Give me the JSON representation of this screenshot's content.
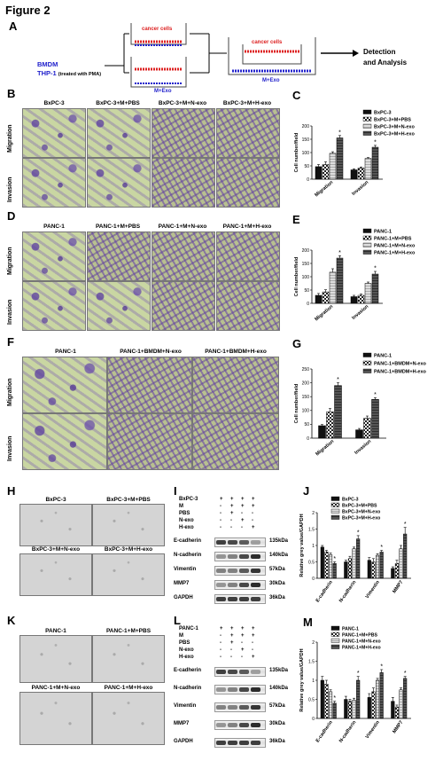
{
  "figure_title": "Figure 2",
  "panelA": {
    "letter": "A",
    "bmdm": "BMDM",
    "thp1": "THP-1",
    "thp1_note": "(treated with PMA)",
    "cancer1": "cancer cells",
    "cancer2": "cancer cells",
    "mexo1": "M+Exo",
    "mexo2": "M+Exo",
    "detection": "Detection",
    "analysis": "and Analysis"
  },
  "panelB": {
    "letter": "B",
    "cols": [
      "BxPC-3",
      "BxPC-3+M+PBS",
      "BxPC-3+M+N-exo",
      "BxPC-3+M+H-exo"
    ],
    "rows": [
      "Migration",
      "Invasion"
    ]
  },
  "panelD": {
    "letter": "D",
    "cols": [
      "PANC-1",
      "PANC-1+M+PBS",
      "PANC-1+M+N-exo",
      "PANC-1+M+H-exo"
    ],
    "rows": [
      "Migration",
      "Invasion"
    ]
  },
  "panelF": {
    "letter": "F",
    "cols": [
      "PANC-1",
      "PANC-1+BMDM+N-exo",
      "PANC-1+BMDM+H-exo"
    ],
    "rows": [
      "Migration",
      "Invasion"
    ]
  },
  "panelH": {
    "letter": "H",
    "caps": [
      "BxPC-3",
      "BxPC-3+M+PBS",
      "BxPC-3+M+N-exo",
      "BxPC-3+M+H-exo"
    ]
  },
  "panelK": {
    "letter": "K",
    "caps": [
      "PANC-1",
      "PANC-1+M+PBS",
      "PANC-1+M+N-exo",
      "PANC-1+M+H-exo"
    ]
  },
  "panelI": {
    "letter": "I",
    "rowlabels": [
      "BxPC-3",
      "M",
      "PBS",
      "N-exo",
      "H-exo"
    ],
    "signs": [
      [
        "+",
        "+",
        "+",
        "+"
      ],
      [
        "-",
        "+",
        "+",
        "+"
      ],
      [
        "-",
        "+",
        "-",
        "-"
      ],
      [
        "-",
        "-",
        "+",
        "-"
      ],
      [
        "-",
        "-",
        "-",
        "+"
      ]
    ],
    "proteins": [
      "E-cadherin",
      "N-cadherin",
      "Vimentin",
      "MMP7",
      "GAPDH"
    ],
    "kda": [
      "135kDa",
      "140kDa",
      "57kDa",
      "30kDa",
      "36kDa"
    ]
  },
  "panelL": {
    "letter": "L",
    "rowlabels": [
      "PANC-1",
      "M",
      "PBS",
      "N-exo",
      "H-exo"
    ],
    "signs": [
      [
        "+",
        "+",
        "+",
        "+"
      ],
      [
        "-",
        "+",
        "+",
        "+"
      ],
      [
        "-",
        "+",
        "-",
        "-"
      ],
      [
        "-",
        "-",
        "+",
        "-"
      ],
      [
        "-",
        "-",
        "-",
        "+"
      ]
    ],
    "proteins": [
      "E-cadherin",
      "N-cadherin",
      "Vimentin",
      "MMP7",
      "GAPDH"
    ],
    "kda": [
      "135kDa",
      "140kDa",
      "57kDa",
      "30kDa",
      "36kDa"
    ]
  },
  "chart_data": [
    {
      "panel": "C",
      "type": "bar",
      "ylabel": "Cell number/field",
      "ylim": [
        0,
        200
      ],
      "yticks": [
        0,
        50,
        100,
        150,
        200
      ],
      "categories": [
        "Migration",
        "Invasion"
      ],
      "series": [
        {
          "name": "BxPC-3",
          "values": [
            47,
            35
          ],
          "errors": [
            8,
            4
          ]
        },
        {
          "name": "BxPC-3+M+PBS",
          "values": [
            55,
            42
          ],
          "errors": [
            10,
            4
          ]
        },
        {
          "name": "BxPC-3+M+N-exo",
          "values": [
            97,
            78
          ],
          "errors": [
            6,
            3
          ]
        },
        {
          "name": "BxPC-3+M+H-exo",
          "values": [
            155,
            120
          ],
          "errors": [
            9,
            7
          ]
        }
      ],
      "significant": [
        false,
        false,
        false,
        true
      ]
    },
    {
      "panel": "E",
      "type": "bar",
      "ylabel": "Cell number/field",
      "ylim": [
        0,
        200
      ],
      "yticks": [
        0,
        50,
        100,
        150,
        200
      ],
      "categories": [
        "Migration",
        "Invasion"
      ],
      "series": [
        {
          "name": "PANC-1",
          "values": [
            30,
            25
          ],
          "errors": [
            7,
            5
          ]
        },
        {
          "name": "PANC-1+M+PBS",
          "values": [
            43,
            30
          ],
          "errors": [
            8,
            5
          ]
        },
        {
          "name": "PANC-1+M+N-exo",
          "values": [
            117,
            75
          ],
          "errors": [
            13,
            5
          ]
        },
        {
          "name": "PANC-1+M+H-exo",
          "values": [
            170,
            110
          ],
          "errors": [
            9,
            10
          ]
        }
      ],
      "significant": [
        false,
        false,
        false,
        true
      ]
    },
    {
      "panel": "G",
      "type": "bar",
      "ylabel": "Cell number/field",
      "ylim": [
        0,
        250
      ],
      "yticks": [
        0,
        50,
        100,
        150,
        200,
        250
      ],
      "categories": [
        "Migration",
        "Invasion"
      ],
      "series": [
        {
          "name": "PANC-1",
          "values": [
            45,
            30
          ],
          "errors": [
            4,
            5
          ]
        },
        {
          "name": "PANC-1+BMDM+N-exo",
          "values": [
            95,
            72
          ],
          "errors": [
            12,
            8
          ]
        },
        {
          "name": "PANC-1+BMDM+H-exo",
          "values": [
            190,
            140
          ],
          "errors": [
            10,
            6
          ]
        }
      ],
      "significant": [
        false,
        false,
        true
      ]
    },
    {
      "panel": "J",
      "type": "bar",
      "ylabel": "Relative grey value/GAPDH",
      "ylim": [
        0,
        2.0
      ],
      "yticks": [
        0,
        0.5,
        1.0,
        1.5,
        2.0
      ],
      "categories": [
        "E-cadherin",
        "N-cadherin",
        "Vimentin",
        "MMP7"
      ],
      "series": [
        {
          "name": "BxPC-3",
          "values": [
            0.95,
            0.5,
            0.55,
            0.3
          ],
          "errors": [
            0.05,
            0.05,
            0.08,
            0.05
          ]
        },
        {
          "name": "BxPC-3+M+PBS",
          "values": [
            0.8,
            0.6,
            0.5,
            0.45
          ],
          "errors": [
            0.05,
            0.07,
            0.1,
            0.1
          ]
        },
        {
          "name": "BxPC-3+M+N-exo",
          "values": [
            0.72,
            0.9,
            0.7,
            0.9
          ],
          "errors": [
            0.05,
            0.05,
            0.05,
            0.1
          ]
        },
        {
          "name": "BxPC-3+M+H-exo",
          "values": [
            0.45,
            1.2,
            0.8,
            1.35
          ],
          "errors": [
            0.05,
            0.1,
            0.05,
            0.2
          ]
        }
      ],
      "significant": [
        false,
        false,
        false,
        true
      ]
    },
    {
      "panel": "M",
      "type": "bar",
      "ylabel": "Relative grey value/GAPDH",
      "ylim": [
        0,
        2.0
      ],
      "yticks": [
        0,
        0.5,
        1.0,
        1.5,
        2.0
      ],
      "categories": [
        "E-cadherin",
        "N-cadherin",
        "Vimentin",
        "MMP7"
      ],
      "series": [
        {
          "name": "PANC-1",
          "values": [
            1.0,
            0.5,
            0.55,
            0.45
          ],
          "errors": [
            0.1,
            0.08,
            0.1,
            0.1
          ]
        },
        {
          "name": "PANC-1+M+PBS",
          "values": [
            0.9,
            0.45,
            0.7,
            0.3
          ],
          "errors": [
            0.1,
            0.05,
            0.1,
            0.05
          ]
        },
        {
          "name": "PANC-1+M+N-exo",
          "values": [
            0.7,
            0.48,
            1.0,
            0.75
          ],
          "errors": [
            0.05,
            0.05,
            0.05,
            0.05
          ]
        },
        {
          "name": "PANC-1+M+H-exo",
          "values": [
            0.4,
            1.0,
            1.2,
            1.05
          ],
          "errors": [
            0.05,
            0.1,
            0.08,
            0.05
          ]
        }
      ],
      "significant": [
        false,
        false,
        false,
        true
      ]
    }
  ]
}
